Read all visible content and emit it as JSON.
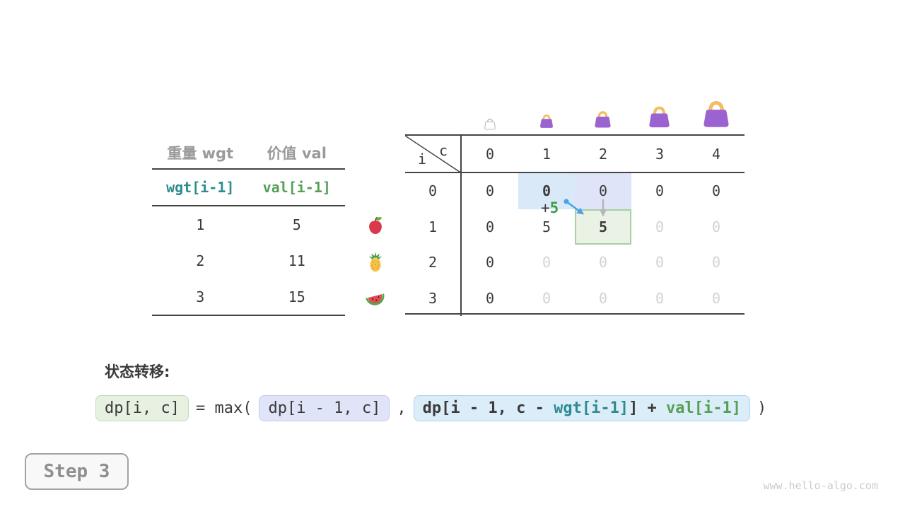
{
  "items_table": {
    "col_headers": [
      "重量 wgt",
      "价值 val"
    ],
    "sub_headers": [
      "wgt[i-1]",
      "val[i-1]"
    ],
    "rows": [
      {
        "wgt": "1",
        "val": "5",
        "fruit": "apple"
      },
      {
        "wgt": "2",
        "val": "11",
        "fruit": "pineapple"
      },
      {
        "wgt": "3",
        "val": "15",
        "fruit": "watermelon"
      }
    ]
  },
  "dp_table": {
    "corner": {
      "row_var": "i",
      "col_var": "c"
    },
    "col_headers": [
      "0",
      "1",
      "2",
      "3",
      "4"
    ],
    "row_headers": [
      "0",
      "1",
      "2",
      "3"
    ],
    "cells": [
      [
        {
          "v": "0"
        },
        {
          "v": "0",
          "b": true,
          "bg": "blue"
        },
        {
          "v": "0",
          "bg": "lavender"
        },
        {
          "v": "0"
        },
        {
          "v": "0"
        }
      ],
      [
        {
          "v": "0"
        },
        {
          "v": "5"
        },
        {
          "v": "5",
          "b": true,
          "bg": "green"
        },
        {
          "v": "0",
          "m": true
        },
        {
          "v": "0",
          "m": true
        }
      ],
      [
        {
          "v": "0"
        },
        {
          "v": "0",
          "m": true
        },
        {
          "v": "0",
          "m": true
        },
        {
          "v": "0",
          "m": true
        },
        {
          "v": "0",
          "m": true
        }
      ],
      [
        {
          "v": "0"
        },
        {
          "v": "0",
          "m": true
        },
        {
          "v": "0",
          "m": true
        },
        {
          "v": "0",
          "m": true
        },
        {
          "v": "0",
          "m": true
        }
      ]
    ],
    "annotation": {
      "plus": "+",
      "value": "5"
    },
    "capacity_icons": [
      {
        "icon": "bag-empty-icon"
      },
      {
        "icon": "bag-icon"
      },
      {
        "icon": "bag-icon"
      },
      {
        "icon": "bag-icon"
      },
      {
        "icon": "bag-icon"
      }
    ]
  },
  "transition": {
    "heading": "状态转移:",
    "lhs": "dp[i, c]",
    "equals_max": "= max(",
    "arg1": "dp[i - 1, c]",
    "comma": ",",
    "arg2_prefix": "dp[i - 1, c - ",
    "arg2_wgt": "wgt[i-1]",
    "arg2_mid": "] + ",
    "arg2_val": "val[i-1]",
    "close": ")"
  },
  "footer": {
    "step_label": "Step 3",
    "site": "www.hello-algo.com"
  },
  "colors": {
    "teal": "#2e8b8e",
    "green": "#55a055",
    "green_bright": "#3f9d49",
    "blue_arrow": "#4aa3e8",
    "arrow_gray": "#b6b6b6",
    "bag_purple": "#9a63d0",
    "bag_handle": "#f4bd62",
    "cell_blue": "#d9e9f8",
    "cell_lavender": "#e0e4f8",
    "cell_green_bg": "#e9f2e5",
    "cell_green_border": "#a9cfa2"
  }
}
